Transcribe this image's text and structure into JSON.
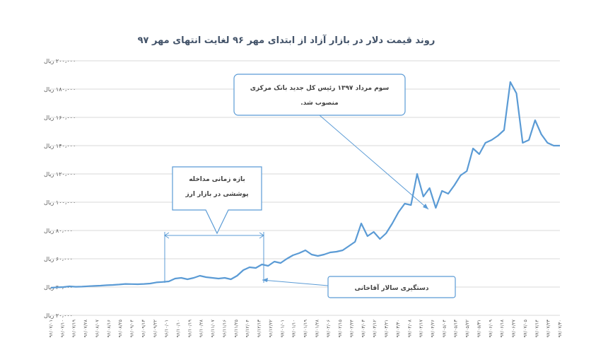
{
  "chart_data": {
    "type": "line",
    "title": "روند قیمت دلار در بازار آزاد از ابتدای مهر ۹۶ لغایت انتهای مهر ۹۷",
    "xlabel": "",
    "ylabel": "",
    "ylim": [
      20000,
      200000
    ],
    "grid": true,
    "legend": "none",
    "color": "#5b9bd5",
    "yticks": [
      {
        "value": 20000,
        "label": "۲۰،۰۰۰ ریال"
      },
      {
        "value": 40000,
        "label": "۴۰،۰۰۰ ریال"
      },
      {
        "value": 60000,
        "label": "۶۰،۰۰۰ ریال"
      },
      {
        "value": 80000,
        "label": "۸۰،۰۰۰ ریال"
      },
      {
        "value": 100000,
        "label": "۱۰۰،۰۰۰ ریال"
      },
      {
        "value": 120000,
        "label": "۱۲۰،۰۰۰ ریال"
      },
      {
        "value": 140000,
        "label": "۱۴۰،۰۰۰ ریال"
      },
      {
        "value": 160000,
        "label": "۱۶۰،۰۰۰ ریال"
      },
      {
        "value": 180000,
        "label": "۱۸۰،۰۰۰ ریال"
      },
      {
        "value": 200000,
        "label": "۲۰۰،۰۰۰ ریال"
      }
    ],
    "x_labels": [
      "۹۶/۰۷/۰۱",
      "۹۶/۰۷/۱۰",
      "۹۶/۰۷/۱۹",
      "۹۶/۰۷/۲۸",
      "۹۶/۰۸/۰۷",
      "۹۶/۰۸/۱۶",
      "۹۶/۰۸/۲۵",
      "۹۶/۰۹/۰۴",
      "۹۶/۰۹/۱۳",
      "۹۶/۰۹/۲۲",
      "۹۶/۱۰/۰۱",
      "۹۶/۱۰/۱۰",
      "۹۶/۱۰/۱۹",
      "۹۶/۱۰/۲۸",
      "۹۶/۱۱/۰۷",
      "۹۶/۱۱/۱۶",
      "۹۶/۱۱/۲۵",
      "۹۶/۱۲/۰۴",
      "۹۶/۱۲/۱۳",
      "۹۶/۱۲/۲۲",
      "۹۷/۰۱/۰۱",
      "۹۷/۰۱/۱۰",
      "۹۷/۰۱/۱۹",
      "۹۷/۰۱/۲۸",
      "۹۷/۰۲/۰۶",
      "۹۷/۰۲/۱۵",
      "۹۷/۰۲/۲۴",
      "۹۷/۰۳/۰۳",
      "۹۷/۰۳/۱۲",
      "۹۷/۰۳/۲۱",
      "۹۷/۰۳/۳۰",
      "۹۷/۰۴/۰۸",
      "۹۷/۰۴/۱۷",
      "۹۷/۰۴/۲۶",
      "۹۷/۰۵/۰۴",
      "۹۷/۰۵/۱۳",
      "۹۷/۰۵/۲۲",
      "۹۷/۰۵/۳۱",
      "۹۷/۰۶/۰۹",
      "۹۷/۰۶/۱۸",
      "۹۷/۰۶/۲۷",
      "۹۷/۰۷/۰۵",
      "۹۷/۰۷/۱۴",
      "۹۷/۰۷/۲۳",
      "۹۷/۰۷/۳۰"
    ],
    "series": [
      {
        "values": [
          39500,
          39800,
          40000,
          40500,
          40200,
          40300,
          40600,
          40800,
          41000,
          41300,
          41500,
          41800,
          42200,
          42100,
          42000,
          42200,
          42500,
          43300,
          43600,
          44000,
          46000,
          46500,
          45500,
          46500,
          48000,
          47000,
          46500,
          46000,
          46500,
          45500,
          48000,
          52000,
          54000,
          53500,
          56000,
          55000,
          58000,
          57000,
          60000,
          62500,
          64000,
          66000,
          63000,
          62000,
          63000,
          64500,
          65000,
          66000,
          69000,
          72000,
          85000,
          76000,
          79000,
          74000,
          78000,
          85000,
          93000,
          99000,
          98000,
          120000,
          104000,
          110000,
          96000,
          108000,
          106000,
          112000,
          119000,
          122000,
          138000,
          134000,
          142000,
          144000,
          147000,
          151000,
          185000,
          177000,
          142000,
          144000,
          158000,
          148000,
          142000,
          140000,
          140000
        ]
      }
    ],
    "annotations": [
      {
        "name": "intervention",
        "text": [
          "بازه زمانی مداخله",
          "پوششی در بازار ارز"
        ]
      },
      {
        "name": "appointment",
        "text": [
          "سوم مرداد ۱۳۹۷ رئیس کل جدید بانک مرکزی",
          "منصوب شد."
        ]
      },
      {
        "name": "arrest",
        "text": [
          "دستگیری سالار آقاخانی"
        ]
      }
    ]
  }
}
